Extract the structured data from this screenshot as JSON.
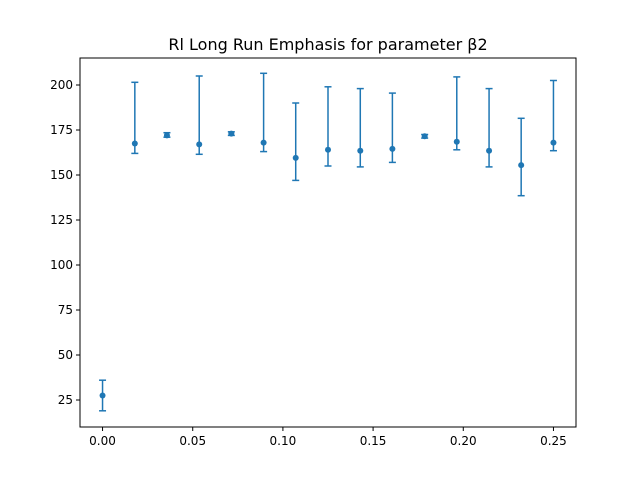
{
  "chart_data": {
    "type": "scatter",
    "title": "Rl Long Run Emphasis for parameter β2",
    "xlabel": "",
    "ylabel": "",
    "xlim": [
      -0.0125,
      0.2625
    ],
    "ylim": [
      10,
      215
    ],
    "xticks": [
      0.0,
      0.05,
      0.1,
      0.15,
      0.2,
      0.25
    ],
    "xtick_labels": [
      "0.00",
      "0.05",
      "0.10",
      "0.15",
      "0.20",
      "0.25"
    ],
    "yticks": [
      25,
      50,
      75,
      100,
      125,
      150,
      175,
      200
    ],
    "ytick_labels": [
      "25",
      "50",
      "75",
      "100",
      "125",
      "150",
      "175",
      "200"
    ],
    "grid": false,
    "color": "#1f77b4",
    "series": [
      {
        "x": [
          0.0,
          0.0179,
          0.0357,
          0.0536,
          0.0714,
          0.0893,
          0.1071,
          0.125,
          0.1429,
          0.1607,
          0.1786,
          0.1964,
          0.2143,
          0.2321,
          0.25
        ],
        "y": [
          27.5,
          167.5,
          172.0,
          167.0,
          173.0,
          168.0,
          159.5,
          164.0,
          163.5,
          164.5,
          171.5,
          168.5,
          163.5,
          155.5,
          168.0
        ],
        "lower": [
          19.0,
          162.0,
          171.0,
          161.5,
          172.0,
          163.0,
          147.0,
          155.0,
          154.5,
          157.0,
          170.5,
          164.0,
          154.5,
          138.5,
          163.5
        ],
        "upper": [
          36.0,
          201.5,
          173.5,
          205.0,
          174.0,
          206.5,
          190.0,
          199.0,
          198.0,
          195.5,
          172.5,
          204.5,
          198.0,
          181.5,
          202.5
        ]
      }
    ]
  }
}
